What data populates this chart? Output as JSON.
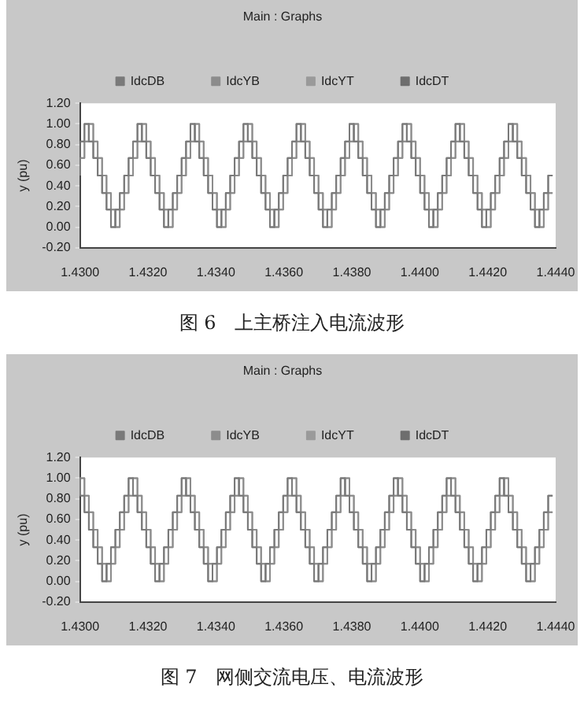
{
  "chart_data": [
    {
      "type": "step",
      "title": "Main : Graphs",
      "ylabel": "y (pu)",
      "legend": "top",
      "marker": "none",
      "annotations": [
        "图 6　上主桥注入电流波形"
      ],
      "xlim": [
        1.43,
        1.444
      ],
      "xticks": [
        {
          "value": 1.43,
          "label": "1.4300"
        },
        {
          "value": 1.432,
          "label": "1.4320"
        },
        {
          "value": 1.434,
          "label": "1.4340"
        },
        {
          "value": 1.436,
          "label": "1.4360"
        },
        {
          "value": 1.438,
          "label": "1.4380"
        },
        {
          "value": 1.44,
          "label": "1.4400"
        },
        {
          "value": 1.442,
          "label": "1.4420"
        },
        {
          "value": 1.444,
          "label": "1.4440"
        }
      ],
      "ylim": [
        -0.2,
        1.2
      ],
      "yticks": [
        {
          "value": -0.2,
          "label": "-0.20"
        },
        {
          "value": 0,
          "label": "0.00"
        },
        {
          "value": 0.2,
          "label": "0.20"
        },
        {
          "value": 0.4,
          "label": "0.40"
        },
        {
          "value": 0.6,
          "label": "0.60"
        },
        {
          "value": 0.8,
          "label": "0.80"
        },
        {
          "value": 1,
          "label": "1.00"
        },
        {
          "value": 1.2,
          "label": "1.20"
        }
      ],
      "x": [
        1.43,
        1.43013,
        1.43026,
        1.43039,
        1.43052,
        1.43065,
        1.43078,
        1.43091,
        1.43104,
        1.43117,
        1.4313,
        1.43143,
        1.43156,
        1.43169,
        1.43182,
        1.43195,
        1.43208,
        1.43221,
        1.43234,
        1.43247,
        1.4326,
        1.43273,
        1.43286,
        1.43299,
        1.43312,
        1.43325,
        1.43338,
        1.43351,
        1.43364,
        1.43377,
        1.4339,
        1.43403,
        1.43416,
        1.43429,
        1.43442,
        1.43455,
        1.43468,
        1.43481,
        1.43494,
        1.43507,
        1.4352,
        1.43533,
        1.43546,
        1.43559,
        1.43572,
        1.43585,
        1.43598,
        1.43611,
        1.43624,
        1.43637,
        1.4365,
        1.43663,
        1.43676,
        1.43689,
        1.43702,
        1.43715,
        1.43728,
        1.43741,
        1.43754,
        1.43767,
        1.4378,
        1.43793,
        1.43806,
        1.43819,
        1.43832,
        1.43845,
        1.43858,
        1.43871,
        1.43884,
        1.43897,
        1.4391,
        1.43923,
        1.43936,
        1.43949,
        1.43962,
        1.43975,
        1.43988,
        1.44001,
        1.44014,
        1.44027,
        1.4404,
        1.44053,
        1.44066,
        1.44079,
        1.44092,
        1.44105,
        1.44118,
        1.44131,
        1.44144,
        1.44157,
        1.4417,
        1.44183,
        1.44196,
        1.44209,
        1.44222,
        1.44235,
        1.44248,
        1.44261,
        1.44274,
        1.44287,
        1.443,
        1.44313,
        1.44326,
        1.44339,
        1.44352,
        1.44365,
        1.44378,
        1.44391
      ],
      "series": [
        {
          "name": "IdcDB",
          "color": "#7a7a7a",
          "values": [
            0.67,
            0.83,
            1,
            0.83,
            0.67,
            0.5,
            0.33,
            0.17,
            0,
            0.17,
            0.33,
            0.5,
            0.67,
            0.83,
            1,
            0.83,
            0.67,
            0.5,
            0.33,
            0.17,
            0,
            0.17,
            0.33,
            0.5,
            0.67,
            0.83,
            1,
            0.83,
            0.67,
            0.5,
            0.33,
            0.17,
            0,
            0.17,
            0.33,
            0.5,
            0.67,
            0.83,
            1,
            0.83,
            0.67,
            0.5,
            0.33,
            0.17,
            0,
            0.17,
            0.33,
            0.5,
            0.67,
            0.83,
            1,
            0.83,
            0.67,
            0.5,
            0.33,
            0.17,
            0,
            0.17,
            0.33,
            0.5,
            0.67,
            0.83,
            1,
            0.83,
            0.67,
            0.5,
            0.33,
            0.17,
            0,
            0.17,
            0.33,
            0.5,
            0.67,
            0.83,
            1,
            0.83,
            0.67,
            0.5,
            0.33,
            0.17,
            0,
            0.17,
            0.33,
            0.5,
            0.67,
            0.83,
            1,
            0.83,
            0.67,
            0.5,
            0.33,
            0.17,
            0,
            0.17,
            0.33,
            0.5,
            0.67,
            0.83,
            1,
            0.83,
            0.67,
            0.5,
            0.33,
            0.17,
            0,
            0.17,
            0.33,
            0.5
          ]
        },
        {
          "name": "IdcYB",
          "color": "#8c8c8c",
          "values": [
            0.5,
            0.67,
            0.83,
            1,
            0.83,
            0.67,
            0.5,
            0.33,
            0.17,
            0,
            0.17,
            0.33,
            0.5,
            0.67,
            0.83,
            1,
            0.83,
            0.67,
            0.5,
            0.33,
            0.17,
            0,
            0.17,
            0.33,
            0.5,
            0.67,
            0.83,
            1,
            0.83,
            0.67,
            0.5,
            0.33,
            0.17,
            0,
            0.17,
            0.33,
            0.5,
            0.67,
            0.83,
            1,
            0.83,
            0.67,
            0.5,
            0.33,
            0.17,
            0,
            0.17,
            0.33,
            0.5,
            0.67,
            0.83,
            1,
            0.83,
            0.67,
            0.5,
            0.33,
            0.17,
            0,
            0.17,
            0.33,
            0.5,
            0.67,
            0.83,
            1,
            0.83,
            0.67,
            0.5,
            0.33,
            0.17,
            0,
            0.17,
            0.33,
            0.5,
            0.67,
            0.83,
            1,
            0.83,
            0.67,
            0.5,
            0.33,
            0.17,
            0,
            0.17,
            0.33,
            0.5,
            0.67,
            0.83,
            1,
            0.83,
            0.67,
            0.5,
            0.33,
            0.17,
            0,
            0.17,
            0.33,
            0.5,
            0.67,
            0.83,
            1,
            0.83,
            0.67,
            0.5,
            0.33,
            0.17,
            0,
            0.17,
            0.33
          ]
        },
        {
          "name": "IdcYT",
          "color": "#9a9a9a",
          "values": [
            0.5,
            0.67,
            0.83,
            1,
            0.83,
            0.67,
            0.5,
            0.33,
            0.17,
            0,
            0.17,
            0.33,
            0.5,
            0.67,
            0.83,
            1,
            0.83,
            0.67,
            0.5,
            0.33,
            0.17,
            0,
            0.17,
            0.33,
            0.5,
            0.67,
            0.83,
            1,
            0.83,
            0.67,
            0.5,
            0.33,
            0.17,
            0,
            0.17,
            0.33,
            0.5,
            0.67,
            0.83,
            1,
            0.83,
            0.67,
            0.5,
            0.33,
            0.17,
            0,
            0.17,
            0.33,
            0.5,
            0.67,
            0.83,
            1,
            0.83,
            0.67,
            0.5,
            0.33,
            0.17,
            0,
            0.17,
            0.33,
            0.5,
            0.67,
            0.83,
            1,
            0.83,
            0.67,
            0.5,
            0.33,
            0.17,
            0,
            0.17,
            0.33,
            0.5,
            0.67,
            0.83,
            1,
            0.83,
            0.67,
            0.5,
            0.33,
            0.17,
            0,
            0.17,
            0.33,
            0.5,
            0.67,
            0.83,
            1,
            0.83,
            0.67,
            0.5,
            0.33,
            0.17,
            0,
            0.17,
            0.33,
            0.5,
            0.67,
            0.83,
            1,
            0.83,
            0.67,
            0.5,
            0.33,
            0.17,
            0,
            0.17,
            0.33
          ]
        },
        {
          "name": "IdcDT",
          "color": "#6e6e6e",
          "values": [
            0.67,
            0.83,
            1,
            0.83,
            0.67,
            0.5,
            0.33,
            0.17,
            0,
            0.17,
            0.33,
            0.5,
            0.67,
            0.83,
            1,
            0.83,
            0.67,
            0.5,
            0.33,
            0.17,
            0,
            0.17,
            0.33,
            0.5,
            0.67,
            0.83,
            1,
            0.83,
            0.67,
            0.5,
            0.33,
            0.17,
            0,
            0.17,
            0.33,
            0.5,
            0.67,
            0.83,
            1,
            0.83,
            0.67,
            0.5,
            0.33,
            0.17,
            0,
            0.17,
            0.33,
            0.5,
            0.67,
            0.83,
            1,
            0.83,
            0.67,
            0.5,
            0.33,
            0.17,
            0,
            0.17,
            0.33,
            0.5,
            0.67,
            0.83,
            1,
            0.83,
            0.67,
            0.5,
            0.33,
            0.17,
            0,
            0.17,
            0.33,
            0.5,
            0.67,
            0.83,
            1,
            0.83,
            0.67,
            0.5,
            0.33,
            0.17,
            0,
            0.17,
            0.33,
            0.5,
            0.67,
            0.83,
            1,
            0.83,
            0.67,
            0.5,
            0.33,
            0.17,
            0,
            0.17,
            0.33,
            0.5,
            0.67,
            0.83,
            1,
            0.83,
            0.67,
            0.5,
            0.33,
            0.17,
            0,
            0.17,
            0.33,
            0.5
          ]
        }
      ]
    },
    {
      "type": "step",
      "title": "Main : Graphs",
      "ylabel": "y (pu)",
      "legend": "top",
      "marker": "none",
      "annotations": [
        "图 7　网侧交流电压、电流波形"
      ],
      "xlim": [
        1.43,
        1.444
      ],
      "xticks": [
        {
          "value": 1.43,
          "label": "1.4300"
        },
        {
          "value": 1.432,
          "label": "1.4320"
        },
        {
          "value": 1.434,
          "label": "1.4340"
        },
        {
          "value": 1.436,
          "label": "1.4360"
        },
        {
          "value": 1.438,
          "label": "1.4380"
        },
        {
          "value": 1.44,
          "label": "1.4400"
        },
        {
          "value": 1.442,
          "label": "1.4420"
        },
        {
          "value": 1.444,
          "label": "1.4440"
        }
      ],
      "ylim": [
        -0.2,
        1.2
      ],
      "yticks": [
        {
          "value": -0.2,
          "label": "-0.20"
        },
        {
          "value": 0,
          "label": "0.00"
        },
        {
          "value": 0.2,
          "label": "0.20"
        },
        {
          "value": 0.4,
          "label": "0.40"
        },
        {
          "value": 0.6,
          "label": "0.60"
        },
        {
          "value": 0.8,
          "label": "0.80"
        },
        {
          "value": 1,
          "label": "1.00"
        },
        {
          "value": 1.2,
          "label": "1.20"
        }
      ],
      "x": [
        1.43,
        1.43013,
        1.43026,
        1.43039,
        1.43052,
        1.43065,
        1.43078,
        1.43091,
        1.43104,
        1.43117,
        1.4313,
        1.43143,
        1.43156,
        1.43169,
        1.43182,
        1.43195,
        1.43208,
        1.43221,
        1.43234,
        1.43247,
        1.4326,
        1.43273,
        1.43286,
        1.43299,
        1.43312,
        1.43325,
        1.43338,
        1.43351,
        1.43364,
        1.43377,
        1.4339,
        1.43403,
        1.43416,
        1.43429,
        1.43442,
        1.43455,
        1.43468,
        1.43481,
        1.43494,
        1.43507,
        1.4352,
        1.43533,
        1.43546,
        1.43559,
        1.43572,
        1.43585,
        1.43598,
        1.43611,
        1.43624,
        1.43637,
        1.4365,
        1.43663,
        1.43676,
        1.43689,
        1.43702,
        1.43715,
        1.43728,
        1.43741,
        1.43754,
        1.43767,
        1.4378,
        1.43793,
        1.43806,
        1.43819,
        1.43832,
        1.43845,
        1.43858,
        1.43871,
        1.43884,
        1.43897,
        1.4391,
        1.43923,
        1.43936,
        1.43949,
        1.43962,
        1.43975,
        1.43988,
        1.44001,
        1.44014,
        1.44027,
        1.4404,
        1.44053,
        1.44066,
        1.44079,
        1.44092,
        1.44105,
        1.44118,
        1.44131,
        1.44144,
        1.44157,
        1.4417,
        1.44183,
        1.44196,
        1.44209,
        1.44222,
        1.44235,
        1.44248,
        1.44261,
        1.44274,
        1.44287,
        1.443,
        1.44313,
        1.44326,
        1.44339,
        1.44352,
        1.44365,
        1.44378,
        1.44391
      ],
      "series": [
        {
          "name": "IdcDB",
          "color": "#7a7a7a",
          "values": [
            1,
            0.83,
            0.67,
            0.5,
            0.33,
            0.17,
            0,
            0.17,
            0.33,
            0.5,
            0.67,
            0.83,
            1,
            0.83,
            0.67,
            0.5,
            0.33,
            0.17,
            0,
            0.17,
            0.33,
            0.5,
            0.67,
            0.83,
            1,
            0.83,
            0.67,
            0.5,
            0.33,
            0.17,
            0,
            0.17,
            0.33,
            0.5,
            0.67,
            0.83,
            1,
            0.83,
            0.67,
            0.5,
            0.33,
            0.17,
            0,
            0.17,
            0.33,
            0.5,
            0.67,
            0.83,
            1,
            0.83,
            0.67,
            0.5,
            0.33,
            0.17,
            0,
            0.17,
            0.33,
            0.5,
            0.67,
            0.83,
            1,
            0.83,
            0.67,
            0.5,
            0.33,
            0.17,
            0,
            0.17,
            0.33,
            0.5,
            0.67,
            0.83,
            1,
            0.83,
            0.67,
            0.5,
            0.33,
            0.17,
            0,
            0.17,
            0.33,
            0.5,
            0.67,
            0.83,
            1,
            0.83,
            0.67,
            0.5,
            0.33,
            0.17,
            0,
            0.17,
            0.33,
            0.5,
            0.67,
            0.83,
            1,
            0.83,
            0.67,
            0.5,
            0.33,
            0.17,
            0,
            0.17,
            0.33,
            0.5,
            0.67,
            0.83
          ]
        },
        {
          "name": "IdcYB",
          "color": "#8c8c8c",
          "values": [
            0.83,
            1,
            0.83,
            0.67,
            0.5,
            0.33,
            0.17,
            0,
            0.17,
            0.33,
            0.5,
            0.67,
            0.83,
            1,
            0.83,
            0.67,
            0.5,
            0.33,
            0.17,
            0,
            0.17,
            0.33,
            0.5,
            0.67,
            0.83,
            1,
            0.83,
            0.67,
            0.5,
            0.33,
            0.17,
            0,
            0.17,
            0.33,
            0.5,
            0.67,
            0.83,
            1,
            0.83,
            0.67,
            0.5,
            0.33,
            0.17,
            0,
            0.17,
            0.33,
            0.5,
            0.67,
            0.83,
            1,
            0.83,
            0.67,
            0.5,
            0.33,
            0.17,
            0,
            0.17,
            0.33,
            0.5,
            0.67,
            0.83,
            1,
            0.83,
            0.67,
            0.5,
            0.33,
            0.17,
            0,
            0.17,
            0.33,
            0.5,
            0.67,
            0.83,
            1,
            0.83,
            0.67,
            0.5,
            0.33,
            0.17,
            0,
            0.17,
            0.33,
            0.5,
            0.67,
            0.83,
            1,
            0.83,
            0.67,
            0.5,
            0.33,
            0.17,
            0,
            0.17,
            0.33,
            0.5,
            0.67,
            0.83,
            1,
            0.83,
            0.67,
            0.5,
            0.33,
            0.17,
            0,
            0.17,
            0.33,
            0.5,
            0.67
          ]
        },
        {
          "name": "IdcYT",
          "color": "#9a9a9a",
          "values": [
            0.83,
            1,
            0.83,
            0.67,
            0.5,
            0.33,
            0.17,
            0,
            0.17,
            0.33,
            0.5,
            0.67,
            0.83,
            1,
            0.83,
            0.67,
            0.5,
            0.33,
            0.17,
            0,
            0.17,
            0.33,
            0.5,
            0.67,
            0.83,
            1,
            0.83,
            0.67,
            0.5,
            0.33,
            0.17,
            0,
            0.17,
            0.33,
            0.5,
            0.67,
            0.83,
            1,
            0.83,
            0.67,
            0.5,
            0.33,
            0.17,
            0,
            0.17,
            0.33,
            0.5,
            0.67,
            0.83,
            1,
            0.83,
            0.67,
            0.5,
            0.33,
            0.17,
            0,
            0.17,
            0.33,
            0.5,
            0.67,
            0.83,
            1,
            0.83,
            0.67,
            0.5,
            0.33,
            0.17,
            0,
            0.17,
            0.33,
            0.5,
            0.67,
            0.83,
            1,
            0.83,
            0.67,
            0.5,
            0.33,
            0.17,
            0,
            0.17,
            0.33,
            0.5,
            0.67,
            0.83,
            1,
            0.83,
            0.67,
            0.5,
            0.33,
            0.17,
            0,
            0.17,
            0.33,
            0.5,
            0.67,
            0.83,
            1,
            0.83,
            0.67,
            0.5,
            0.33,
            0.17,
            0,
            0.17,
            0.33,
            0.5,
            0.67
          ]
        },
        {
          "name": "IdcDT",
          "color": "#6e6e6e",
          "values": [
            1,
            0.83,
            0.67,
            0.5,
            0.33,
            0.17,
            0,
            0.17,
            0.33,
            0.5,
            0.67,
            0.83,
            1,
            0.83,
            0.67,
            0.5,
            0.33,
            0.17,
            0,
            0.17,
            0.33,
            0.5,
            0.67,
            0.83,
            1,
            0.83,
            0.67,
            0.5,
            0.33,
            0.17,
            0,
            0.17,
            0.33,
            0.5,
            0.67,
            0.83,
            1,
            0.83,
            0.67,
            0.5,
            0.33,
            0.17,
            0,
            0.17,
            0.33,
            0.5,
            0.67,
            0.83,
            1,
            0.83,
            0.67,
            0.5,
            0.33,
            0.17,
            0,
            0.17,
            0.33,
            0.5,
            0.67,
            0.83,
            1,
            0.83,
            0.67,
            0.5,
            0.33,
            0.17,
            0,
            0.17,
            0.33,
            0.5,
            0.67,
            0.83,
            1,
            0.83,
            0.67,
            0.5,
            0.33,
            0.17,
            0,
            0.17,
            0.33,
            0.5,
            0.67,
            0.83,
            1,
            0.83,
            0.67,
            0.5,
            0.33,
            0.17,
            0,
            0.17,
            0.33,
            0.5,
            0.67,
            0.83,
            1,
            0.83,
            0.67,
            0.5,
            0.33,
            0.17,
            0,
            0.17,
            0.33,
            0.5,
            0.67,
            0.83
          ]
        }
      ]
    }
  ]
}
